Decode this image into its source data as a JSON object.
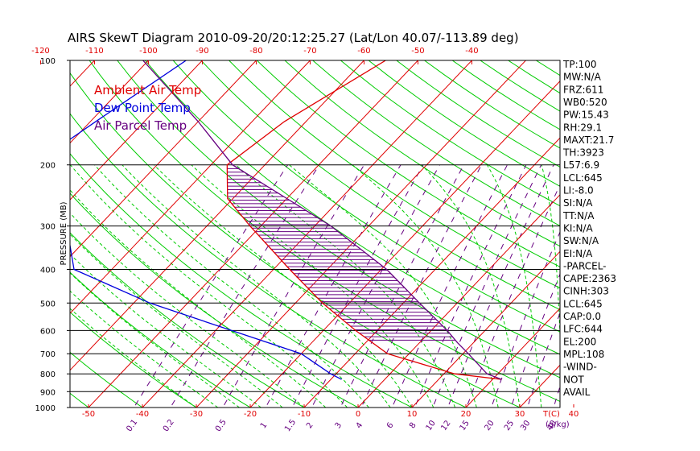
{
  "chart_data": {
    "type": "line",
    "title": "AIRS SkewT Diagram 2010-09-20/20:12:25.27 (Lat/Lon 40.07/-113.89 deg)",
    "ylabel": "PRESSURE (MB)",
    "y_axis": {
      "scale": "log",
      "range": [
        1000,
        100
      ],
      "ticks": [
        "100",
        "200",
        "300",
        "400",
        "500",
        "600",
        "700",
        "800",
        "900",
        "1000"
      ]
    },
    "top_axis": {
      "ticks": [
        "-120",
        "-110",
        "-100",
        "-90",
        "-80",
        "-70",
        "-60",
        "-50",
        "-40"
      ]
    },
    "bottom_temp_axis": {
      "unit": "T(C)",
      "ticks": [
        "-50",
        "-40",
        "-30",
        "-20",
        "-10",
        "0",
        "10",
        "20",
        "30",
        "40"
      ]
    },
    "mixing_ratio_axis": {
      "unit": "(g/kg)",
      "ticks": [
        "0.1",
        "0.2",
        "0.5",
        "1",
        "1.5",
        "2",
        "3",
        "4",
        "6",
        "8",
        "10",
        "12",
        "15",
        "20",
        "25",
        "30",
        "40"
      ]
    },
    "legend": {
      "placement": "top-left",
      "entries": [
        {
          "label": "Ambient Air Temp",
          "color": "#e00000"
        },
        {
          "label": "Dew Point Temp",
          "color": "#0000dd"
        },
        {
          "label": "Air Parcel Temp",
          "color": "#660080"
        }
      ]
    },
    "series": [
      {
        "color": "#e00000",
        "points": [
          {
            "p": 100,
            "t": -56
          },
          {
            "p": 150,
            "t": -64
          },
          {
            "p": 200,
            "t": -67
          },
          {
            "p": 250,
            "t": -61
          },
          {
            "p": 300,
            "t": -52
          },
          {
            "p": 400,
            "t": -37
          },
          {
            "p": 500,
            "t": -25
          },
          {
            "p": 600,
            "t": -14
          },
          {
            "p": 700,
            "t": -4
          },
          {
            "p": 800,
            "t": 12
          },
          {
            "p": 830,
            "t": 21.7
          }
        ]
      },
      {
        "color": "#0000dd",
        "points": [
          {
            "p": 100,
            "t": -93
          },
          {
            "p": 150,
            "t": -99
          },
          {
            "p": 200,
            "t": -103
          },
          {
            "p": 250,
            "t": -94
          },
          {
            "p": 300,
            "t": -86
          },
          {
            "p": 400,
            "t": -77
          },
          {
            "p": 500,
            "t": -57
          },
          {
            "p": 600,
            "t": -37
          },
          {
            "p": 700,
            "t": -20
          },
          {
            "p": 800,
            "t": -11
          },
          {
            "p": 830,
            "t": -8
          }
        ]
      },
      {
        "color": "#660080",
        "points": [
          {
            "p": 100,
            "t": -101
          },
          {
            "p": 150,
            "t": -80
          },
          {
            "p": 200,
            "t": -66
          },
          {
            "p": 250,
            "t": -50
          },
          {
            "p": 300,
            "t": -37
          },
          {
            "p": 400,
            "t": -19
          },
          {
            "p": 500,
            "t": -7
          },
          {
            "p": 600,
            "t": 3
          },
          {
            "p": 650,
            "t": 7
          },
          {
            "p": 700,
            "t": 11
          },
          {
            "p": 800,
            "t": 18
          },
          {
            "p": 830,
            "t": 21.7
          }
        ]
      }
    ],
    "stats": [
      "TP:100",
      "MW:N/A",
      "FRZ:611",
      "WB0:520",
      "PW:15.43",
      "RH:29.1",
      "MAXT:21.7",
      "TH:3923",
      "L57:6.9",
      "LCL:645",
      "LI:-8.0",
      "SI:N/A",
      "TT:N/A",
      "KI:N/A",
      "SW:N/A",
      "EI:N/A",
      "-PARCEL-",
      "CAPE:2363",
      "CINH:303",
      "LCL:645",
      "CAP:0.0",
      "LFC:644",
      "EL:200",
      "MPL:108",
      "-WIND-",
      "NOT",
      "AVAIL"
    ]
  },
  "colors": {
    "isotherm": "#e00000",
    "dry_adiabat": "#00cc00",
    "moist_adiabat": "#00cc00",
    "mixing_ratio": "#660080",
    "isobar": "#000000",
    "cape_hatch": "#660080",
    "top_axis": "#e00000",
    "bottom_axis": "#e00000",
    "mixing_axis": "#660080"
  }
}
